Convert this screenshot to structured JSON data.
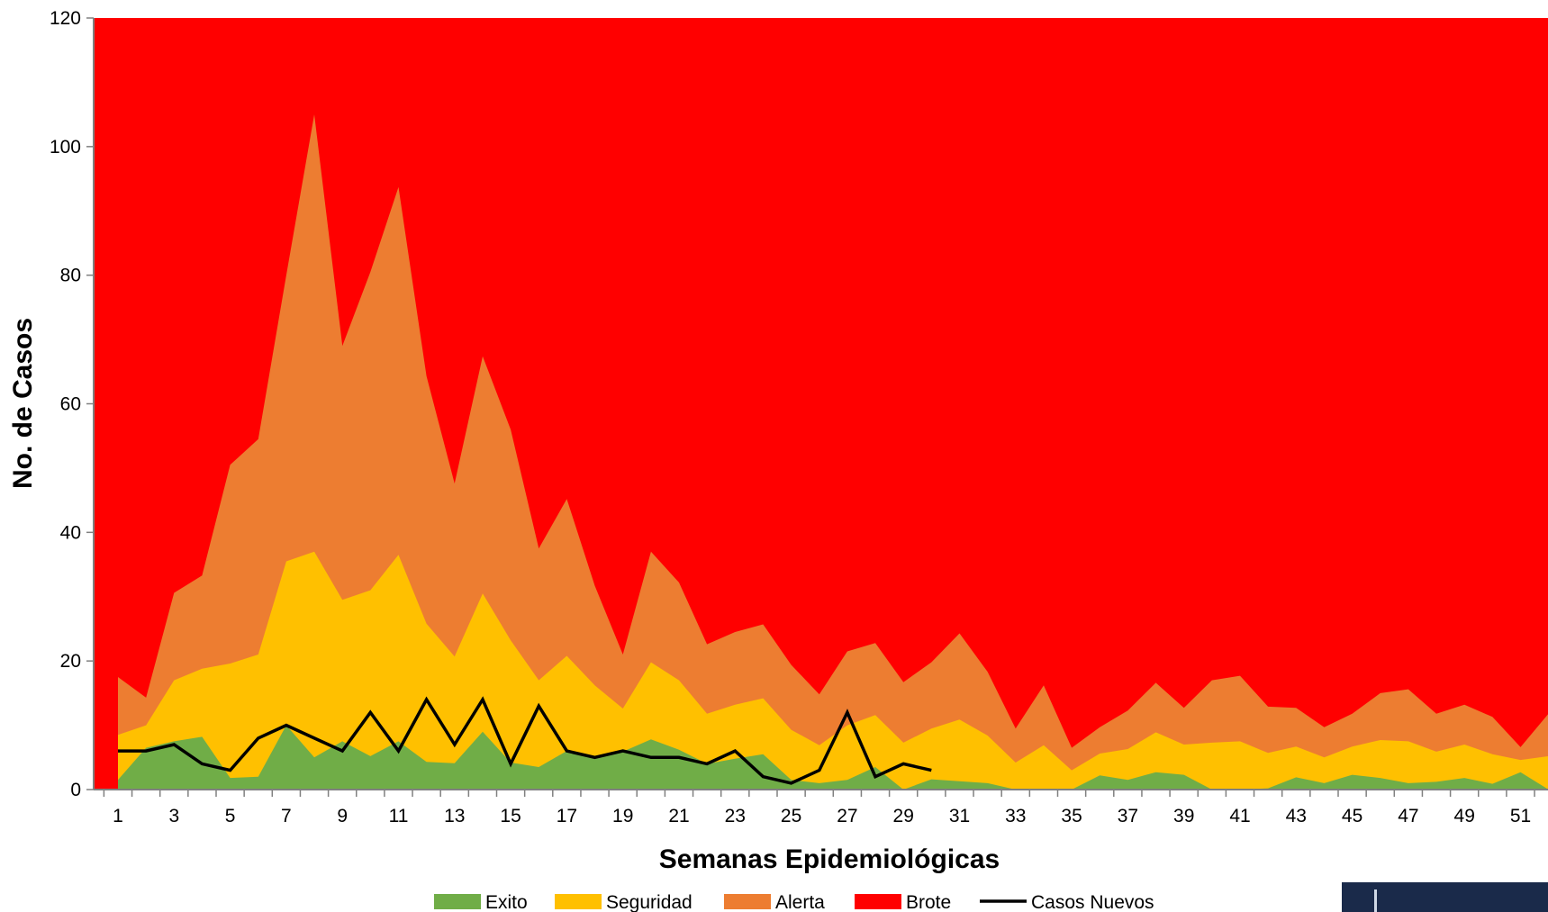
{
  "chart_data": {
    "type": "area",
    "xlabel": "Semanas Epidemiológicas",
    "ylabel": "No. de Casos",
    "ylim": [
      0,
      120
    ],
    "yticks": [
      0,
      20,
      40,
      60,
      80,
      100,
      120
    ],
    "x": [
      1,
      2,
      3,
      4,
      5,
      6,
      7,
      8,
      9,
      10,
      11,
      12,
      13,
      14,
      15,
      16,
      17,
      18,
      19,
      20,
      21,
      22,
      23,
      24,
      25,
      26,
      27,
      28,
      29,
      30,
      31,
      32,
      33,
      34,
      35,
      36,
      37,
      38,
      39,
      40,
      41,
      42,
      43,
      44,
      45,
      46,
      47,
      48,
      49,
      50,
      51,
      52
    ],
    "xtick_labels": [
      "1",
      "3",
      "5",
      "7",
      "9",
      "11",
      "13",
      "15",
      "17",
      "19",
      "21",
      "23",
      "25",
      "27",
      "29",
      "31",
      "33",
      "35",
      "37",
      "39",
      "41",
      "43",
      "45",
      "47",
      "49",
      "51"
    ],
    "legend_position": "bottom",
    "series": [
      {
        "name": "Exito",
        "color": "#70ad47",
        "values": [
          1.5,
          6.5,
          7.5,
          8.2,
          1.8,
          2,
          10,
          5,
          7.5,
          5.2,
          7.5,
          4.3,
          4.1,
          9,
          4.2,
          3.5,
          6,
          5.2,
          5.9,
          7.8,
          6.2,
          4,
          4.8,
          5.5,
          1.5,
          1,
          1.5,
          3.5,
          0,
          1.6,
          1.3,
          1,
          0,
          0,
          0,
          2.2,
          1.5,
          2.7,
          2.3,
          0,
          0,
          0.2,
          1.9,
          1,
          2.3,
          1.8,
          1,
          1.2,
          1.8,
          0.9,
          2.7,
          0
        ]
      },
      {
        "name": "Seguridad",
        "color": "#ffc000",
        "values": [
          8.5,
          10,
          17,
          18.8,
          19.6,
          21,
          35.5,
          37,
          29.5,
          31,
          36.5,
          25.8,
          20.7,
          30.5,
          23.2,
          17,
          20.8,
          16.2,
          12.6,
          19.8,
          17,
          11.8,
          13.2,
          14.2,
          9.3,
          6.9,
          10,
          11.6,
          7.3,
          9.5,
          10.9,
          8.4,
          4.2,
          6.9,
          3,
          5.6,
          6.3,
          8.9,
          7,
          7.3,
          7.5,
          5.7,
          6.7,
          5,
          6.7,
          7.7,
          7.5,
          5.9,
          7,
          5.5,
          4.6,
          5.2
        ]
      },
      {
        "name": "Alerta",
        "color": "#ed7d31",
        "values": [
          17.5,
          14.3,
          30.6,
          33.3,
          50.5,
          54.5,
          80,
          105,
          69,
          80.5,
          93.7,
          64.3,
          47.6,
          67.4,
          56,
          37.5,
          45.2,
          31.7,
          21,
          37,
          32.2,
          22.6,
          24.5,
          25.7,
          19.4,
          14.8,
          21.5,
          22.8,
          16.7,
          19.8,
          24.3,
          18.3,
          9.5,
          16.2,
          6.5,
          9.7,
          12.3,
          16.6,
          12.7,
          17,
          17.7,
          12.9,
          12.7,
          9.7,
          11.8,
          15,
          15.6,
          11.8,
          13.2,
          11.3,
          6.6,
          11.8
        ]
      },
      {
        "name": "Brote",
        "color": "#ff0000",
        "values": [
          120,
          120,
          120,
          120,
          120,
          120,
          120,
          120,
          120,
          120,
          120,
          120,
          120,
          120,
          120,
          120,
          120,
          120,
          120,
          120,
          120,
          120,
          120,
          120,
          120,
          120,
          120,
          120,
          120,
          120,
          120,
          120,
          120,
          120,
          120,
          120,
          120,
          120,
          120,
          120,
          120,
          120,
          120,
          120,
          120,
          120,
          120,
          120,
          120,
          120,
          120,
          120
        ]
      }
    ],
    "line_series": {
      "name": "Casos Nuevos",
      "color": "#000000",
      "x": [
        1,
        2,
        3,
        4,
        5,
        6,
        7,
        8,
        9,
        10,
        11,
        12,
        13,
        14,
        15,
        16,
        17,
        18,
        19,
        20,
        21,
        22,
        23,
        24,
        25,
        26,
        27,
        28,
        29,
        30
      ],
      "values": [
        6,
        6,
        7,
        4,
        3,
        8,
        10,
        8,
        6,
        12,
        6,
        14,
        7,
        14,
        4,
        13,
        6,
        5,
        6,
        5,
        5,
        4,
        6,
        2,
        1,
        3,
        12,
        2,
        4,
        3
      ]
    }
  }
}
